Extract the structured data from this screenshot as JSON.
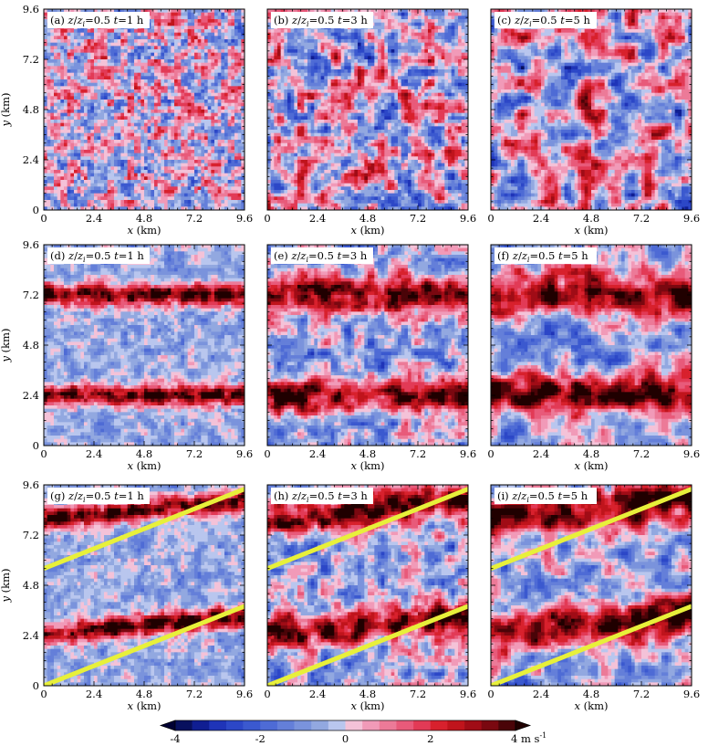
{
  "chart_data": {
    "type": "heatmap",
    "description_kind": "vertical velocity contour panels",
    "panel_grid": {
      "rows": 3,
      "cols": 3
    },
    "x": {
      "label_var": "x",
      "label_unit": "(km)",
      "ticks": [
        "0",
        "2.4",
        "4.8",
        "7.2",
        "9.6"
      ],
      "range": [
        0,
        9.6
      ]
    },
    "y": {
      "label_var": "y",
      "label_unit": "(km)",
      "ticks": [
        "0",
        "2.4",
        "4.8",
        "7.2",
        "9.6"
      ],
      "range": [
        0,
        9.6
      ]
    },
    "panels": [
      {
        "tag": "(a)",
        "t": "1",
        "height": "0.5",
        "pattern": "uniform",
        "pattern_params": {
          "cell": 0.32,
          "amp": 1.0
        }
      },
      {
        "tag": "(b)",
        "t": "3",
        "height": "0.5",
        "pattern": "uniform",
        "pattern_params": {
          "cell": 0.55,
          "amp": 1.15
        }
      },
      {
        "tag": "(c)",
        "t": "5",
        "height": "0.5",
        "pattern": "uniform",
        "pattern_params": {
          "cell": 0.75,
          "amp": 1.25
        }
      },
      {
        "tag": "(d)",
        "t": "1",
        "height": "0.5",
        "pattern": "bands",
        "band_y": [
          2.4,
          7.2
        ],
        "band_slope": 0
      },
      {
        "tag": "(e)",
        "t": "3",
        "height": "0.5",
        "pattern": "bands",
        "band_y": [
          2.4,
          7.2
        ],
        "band_slope": 0
      },
      {
        "tag": "(f)",
        "t": "5",
        "height": "0.5",
        "pattern": "bands",
        "band_y": [
          2.4,
          7.2
        ],
        "band_slope": 0
      },
      {
        "tag": "(g)",
        "t": "1",
        "height": "0.5",
        "pattern": "tilted",
        "band_y": [
          2.6,
          8.2
        ],
        "band_slope": 0.0
      },
      {
        "tag": "(h)",
        "t": "3",
        "height": "0.5",
        "pattern": "tilted",
        "band_y": [
          2.6,
          8.2
        ],
        "band_slope": 0.0
      },
      {
        "tag": "(i)",
        "t": "5",
        "height": "0.5",
        "pattern": "tilted",
        "band_y": [
          2.6,
          8.2
        ],
        "band_slope": 0.0
      }
    ],
    "overlay_lines": [
      {
        "panels": [
          "(g)",
          "(h)",
          "(i)"
        ],
        "color": "#e8f03a",
        "x0": 0,
        "y0": 0,
        "x1": 9.6,
        "y1": 3.8
      },
      {
        "panels": [
          "(g)",
          "(h)",
          "(i)"
        ],
        "color": "#e8f03a",
        "x0": 0,
        "y0": 5.6,
        "x1": 9.6,
        "y1": 9.4
      }
    ],
    "colorbar": {
      "min": -4,
      "max": 4,
      "levels": 20,
      "tick_labels": [
        "-4",
        "-2",
        "0",
        "2",
        "4"
      ],
      "unit": "4 m s",
      "unit_exp": "-1",
      "extend": "both",
      "colors": [
        "#08105e",
        "#101e92",
        "#1f34b8",
        "#2c47c7",
        "#3b59cf",
        "#4e6bd5",
        "#647fd9",
        "#7a93dc",
        "#92a8e0",
        "#b9c6ee",
        "#f4c2d8",
        "#f19ab8",
        "#ec7a98",
        "#e85a7a",
        "#e23a56",
        "#d8212d",
        "#c0141c",
        "#a00c16",
        "#7a0810",
        "#4a0408"
      ]
    },
    "colorbar_outside": {
      "low": "#000033",
      "high": "#200000"
    }
  }
}
